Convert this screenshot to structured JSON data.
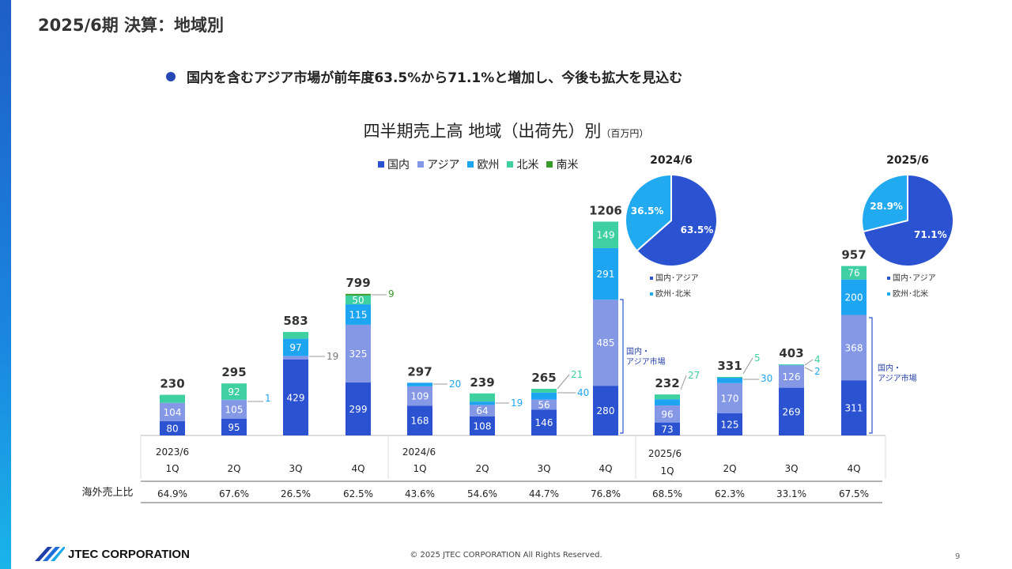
{
  "page": {
    "title": "2025/6期 決算：地域別",
    "bullet": "国内を含むアジア市場が前年度63.5%から71.1%と増加し、今後も拡大を見込む",
    "chart_title": "四半期売上高 地域（出荷先）別",
    "chart_unit": "（百万円）",
    "footer": "© 2025 JTEC CORPORATION All Rights Reserved.",
    "page_number": "9",
    "logo_text": "JTEC CORPORATION"
  },
  "chart_data": [
    {
      "type": "bar",
      "stacked": true,
      "title": "四半期売上高 地域（出荷先）別",
      "unit": "（百万円）",
      "categories": [
        "1Q",
        "2Q",
        "3Q",
        "4Q",
        "1Q",
        "2Q",
        "3Q",
        "4Q",
        "1Q",
        "2Q",
        "3Q",
        "4Q"
      ],
      "period_labels": [
        "2023/6",
        "2024/6",
        "2025/6"
      ],
      "series": [
        {
          "name": "国内",
          "color": "#2b52d0",
          "values": [
            80,
            95,
            429,
            299,
            168,
            108,
            146,
            280,
            73,
            125,
            269,
            311
          ]
        },
        {
          "name": "アジア",
          "color": "#8498e6",
          "values": [
            104,
            105,
            19,
            325,
            109,
            64,
            56,
            485,
            96,
            170,
            126,
            368
          ]
        },
        {
          "name": "欧州",
          "color": "#1ea5f2",
          "values": [
            0,
            1,
            97,
            115,
            20,
            19,
            40,
            291,
            35,
            30,
            2,
            200
          ]
        },
        {
          "name": "北米",
          "color": "#3ed0a0",
          "values": [
            45,
            92,
            38,
            50,
            0,
            46,
            21,
            149,
            27,
            5,
            4,
            76
          ]
        },
        {
          "name": "南米",
          "color": "#3a9a2a",
          "values": [
            0,
            0,
            0,
            9,
            0,
            0,
            0,
            0,
            0,
            0,
            0,
            0
          ]
        }
      ],
      "totals": [
        230,
        295,
        583,
        799,
        297,
        239,
        265,
        1206,
        232,
        331,
        403,
        957
      ],
      "callouts": [
        {
          "bar": 1,
          "label": "1",
          "color": "#1ea5f2"
        },
        {
          "bar": 2,
          "label": "19",
          "color": "#777777"
        },
        {
          "bar": 3,
          "label": "9",
          "color": "#3a9a2a"
        },
        {
          "bar": 4,
          "label": "20",
          "color": "#1ea5f2"
        },
        {
          "bar": 5,
          "label": "19",
          "color": "#1ea5f2"
        },
        {
          "bar": 6,
          "label": "40",
          "color": "#1ea5f2"
        },
        {
          "bar": 6,
          "label": "21",
          "color": "#3ed0a0"
        },
        {
          "bar": 8,
          "label": "27",
          "color": "#3ed0a0"
        },
        {
          "bar": 9,
          "label": "5",
          "color": "#3ed0a0"
        },
        {
          "bar": 9,
          "label": "30",
          "color": "#1ea5f2"
        },
        {
          "bar": 10,
          "label": "4",
          "color": "#3ed0a0"
        },
        {
          "bar": 10,
          "label": "2",
          "color": "#1ea5f2"
        }
      ],
      "brackets": [
        {
          "bar": 7,
          "label_lines": [
            "国内・",
            "アジア市場"
          ]
        },
        {
          "bar": 11,
          "label_lines": [
            "国内・",
            "アジア市場"
          ]
        }
      ],
      "overseas_row_label": "海外売上比",
      "overseas_ratio": [
        "64.9%",
        "67.6%",
        "26.5%",
        "62.5%",
        "43.6%",
        "54.6%",
        "44.7%",
        "76.8%",
        "68.5%",
        "62.3%",
        "33.1%",
        "67.5%"
      ]
    },
    {
      "type": "pie",
      "title": "2024/6",
      "slices": [
        {
          "label": "国内･アジア",
          "value": 63.5,
          "text": "63.5%",
          "color": "#2b52d0"
        },
        {
          "label": "欧州･北米",
          "value": 36.5,
          "text": "36.5%",
          "color": "#22aaf0"
        }
      ]
    },
    {
      "type": "pie",
      "title": "2025/6",
      "slices": [
        {
          "label": "国内･アジア",
          "value": 71.1,
          "text": "71.1%",
          "color": "#2b52d0"
        },
        {
          "label": "欧州･北米",
          "value": 28.9,
          "text": "28.9%",
          "color": "#22aaf0"
        }
      ]
    }
  ]
}
